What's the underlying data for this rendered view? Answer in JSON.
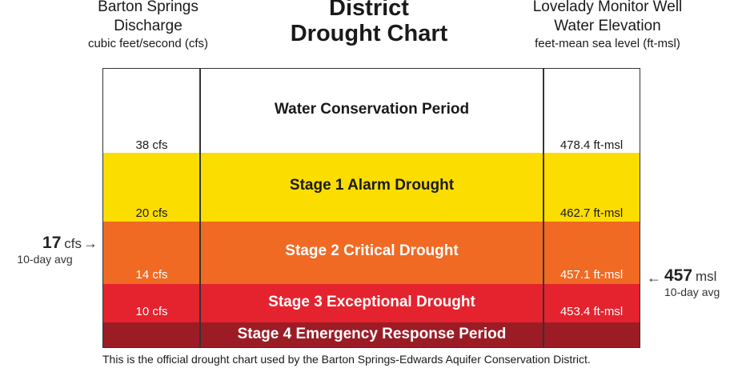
{
  "header": {
    "left": {
      "line1": "Barton Springs",
      "line2": "Discharge",
      "units": "cubic feet/second (cfs)"
    },
    "title": {
      "line1": "District",
      "line2": "Drought Chart"
    },
    "right": {
      "line1": "Lovelady Monitor Well",
      "line2": "Water Elevation",
      "units": "feet-mean sea level (ft-msl)"
    }
  },
  "stages": [
    {
      "label": "Water Conservation Period",
      "cfs": "38 cfs",
      "msl": "478.4 ft-msl",
      "color": "#FFFFFF",
      "text_color": "#1a1a1a"
    },
    {
      "label": "Stage 1 Alarm Drought",
      "cfs": "20 cfs",
      "msl": "462.7 ft-msl",
      "color": "#FCDD00",
      "text_color": "#1a1a1a"
    },
    {
      "label": "Stage 2 Critical Drought",
      "cfs": "14 cfs",
      "msl": "457.1 ft-msl",
      "color": "#F06A24",
      "text_color": "#FFFFFF"
    },
    {
      "label": "Stage 3 Exceptional Drought",
      "cfs": "10 cfs",
      "msl": "453.4 ft-msl",
      "color": "#E4232E",
      "text_color": "#FFFFFF"
    },
    {
      "label": "Stage 4 Emergency Response Period",
      "color": "#9C1C26",
      "text_color": "#FFFFFF"
    }
  ],
  "indicators": {
    "left": {
      "value": "17",
      "unit": "cfs",
      "note": "10-day avg",
      "arrow": "→"
    },
    "right": {
      "value": "457",
      "unit": "msl",
      "note": "10-day avg",
      "arrow": "←"
    }
  },
  "caption": "This is the official drought chart used by the Barton Springs-Edwards Aquifer Conservation District."
}
